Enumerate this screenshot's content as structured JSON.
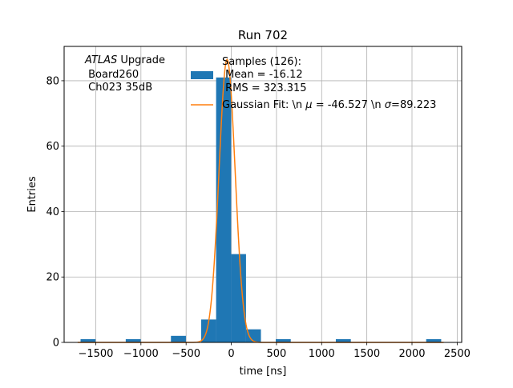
{
  "chart_data": {
    "type": "bar",
    "title": "Run 702",
    "xlabel": "time [ns]",
    "ylabel": "Entries",
    "xlim": [
      -1850,
      2550
    ],
    "ylim": [
      0,
      90.5
    ],
    "grid": true,
    "xticks": [
      -1500,
      -1000,
      -500,
      0,
      500,
      1000,
      1500,
      2000,
      2500
    ],
    "yticks": [
      0,
      20,
      40,
      60,
      80
    ],
    "bin_width": 166,
    "histogram": {
      "color": "#1f77b4",
      "bin_centers": [
        -1585,
        -1085,
        -585,
        -250,
        -85,
        80,
        245,
        575,
        1240,
        2240
      ],
      "counts": [
        1,
        1,
        2,
        7,
        81,
        27,
        4,
        1,
        1,
        1
      ]
    },
    "fit": {
      "color": "#ff7f0e",
      "amplitude": 86.5,
      "mu": -46.527,
      "sigma": 89.223
    },
    "legend": {
      "position": "upper right",
      "entries": [
        {
          "kind": "patch",
          "label_lines": [
            "Samples (126):",
            " Mean = -16.12",
            " RMS = 323.315"
          ]
        },
        {
          "kind": "line",
          "label_prefix": "Gaussian Fit: \\n ",
          "label_mu_symbol": "μ",
          "label_mu_value": " = -46.527 \\n ",
          "label_sigma_symbol": "σ",
          "label_sigma_value": "=89.223"
        }
      ]
    },
    "annotation": {
      "italic": "ATLAS",
      "rest": " Upgrade",
      "line2": " Board260",
      "line3": " Ch023 35dB"
    }
  }
}
